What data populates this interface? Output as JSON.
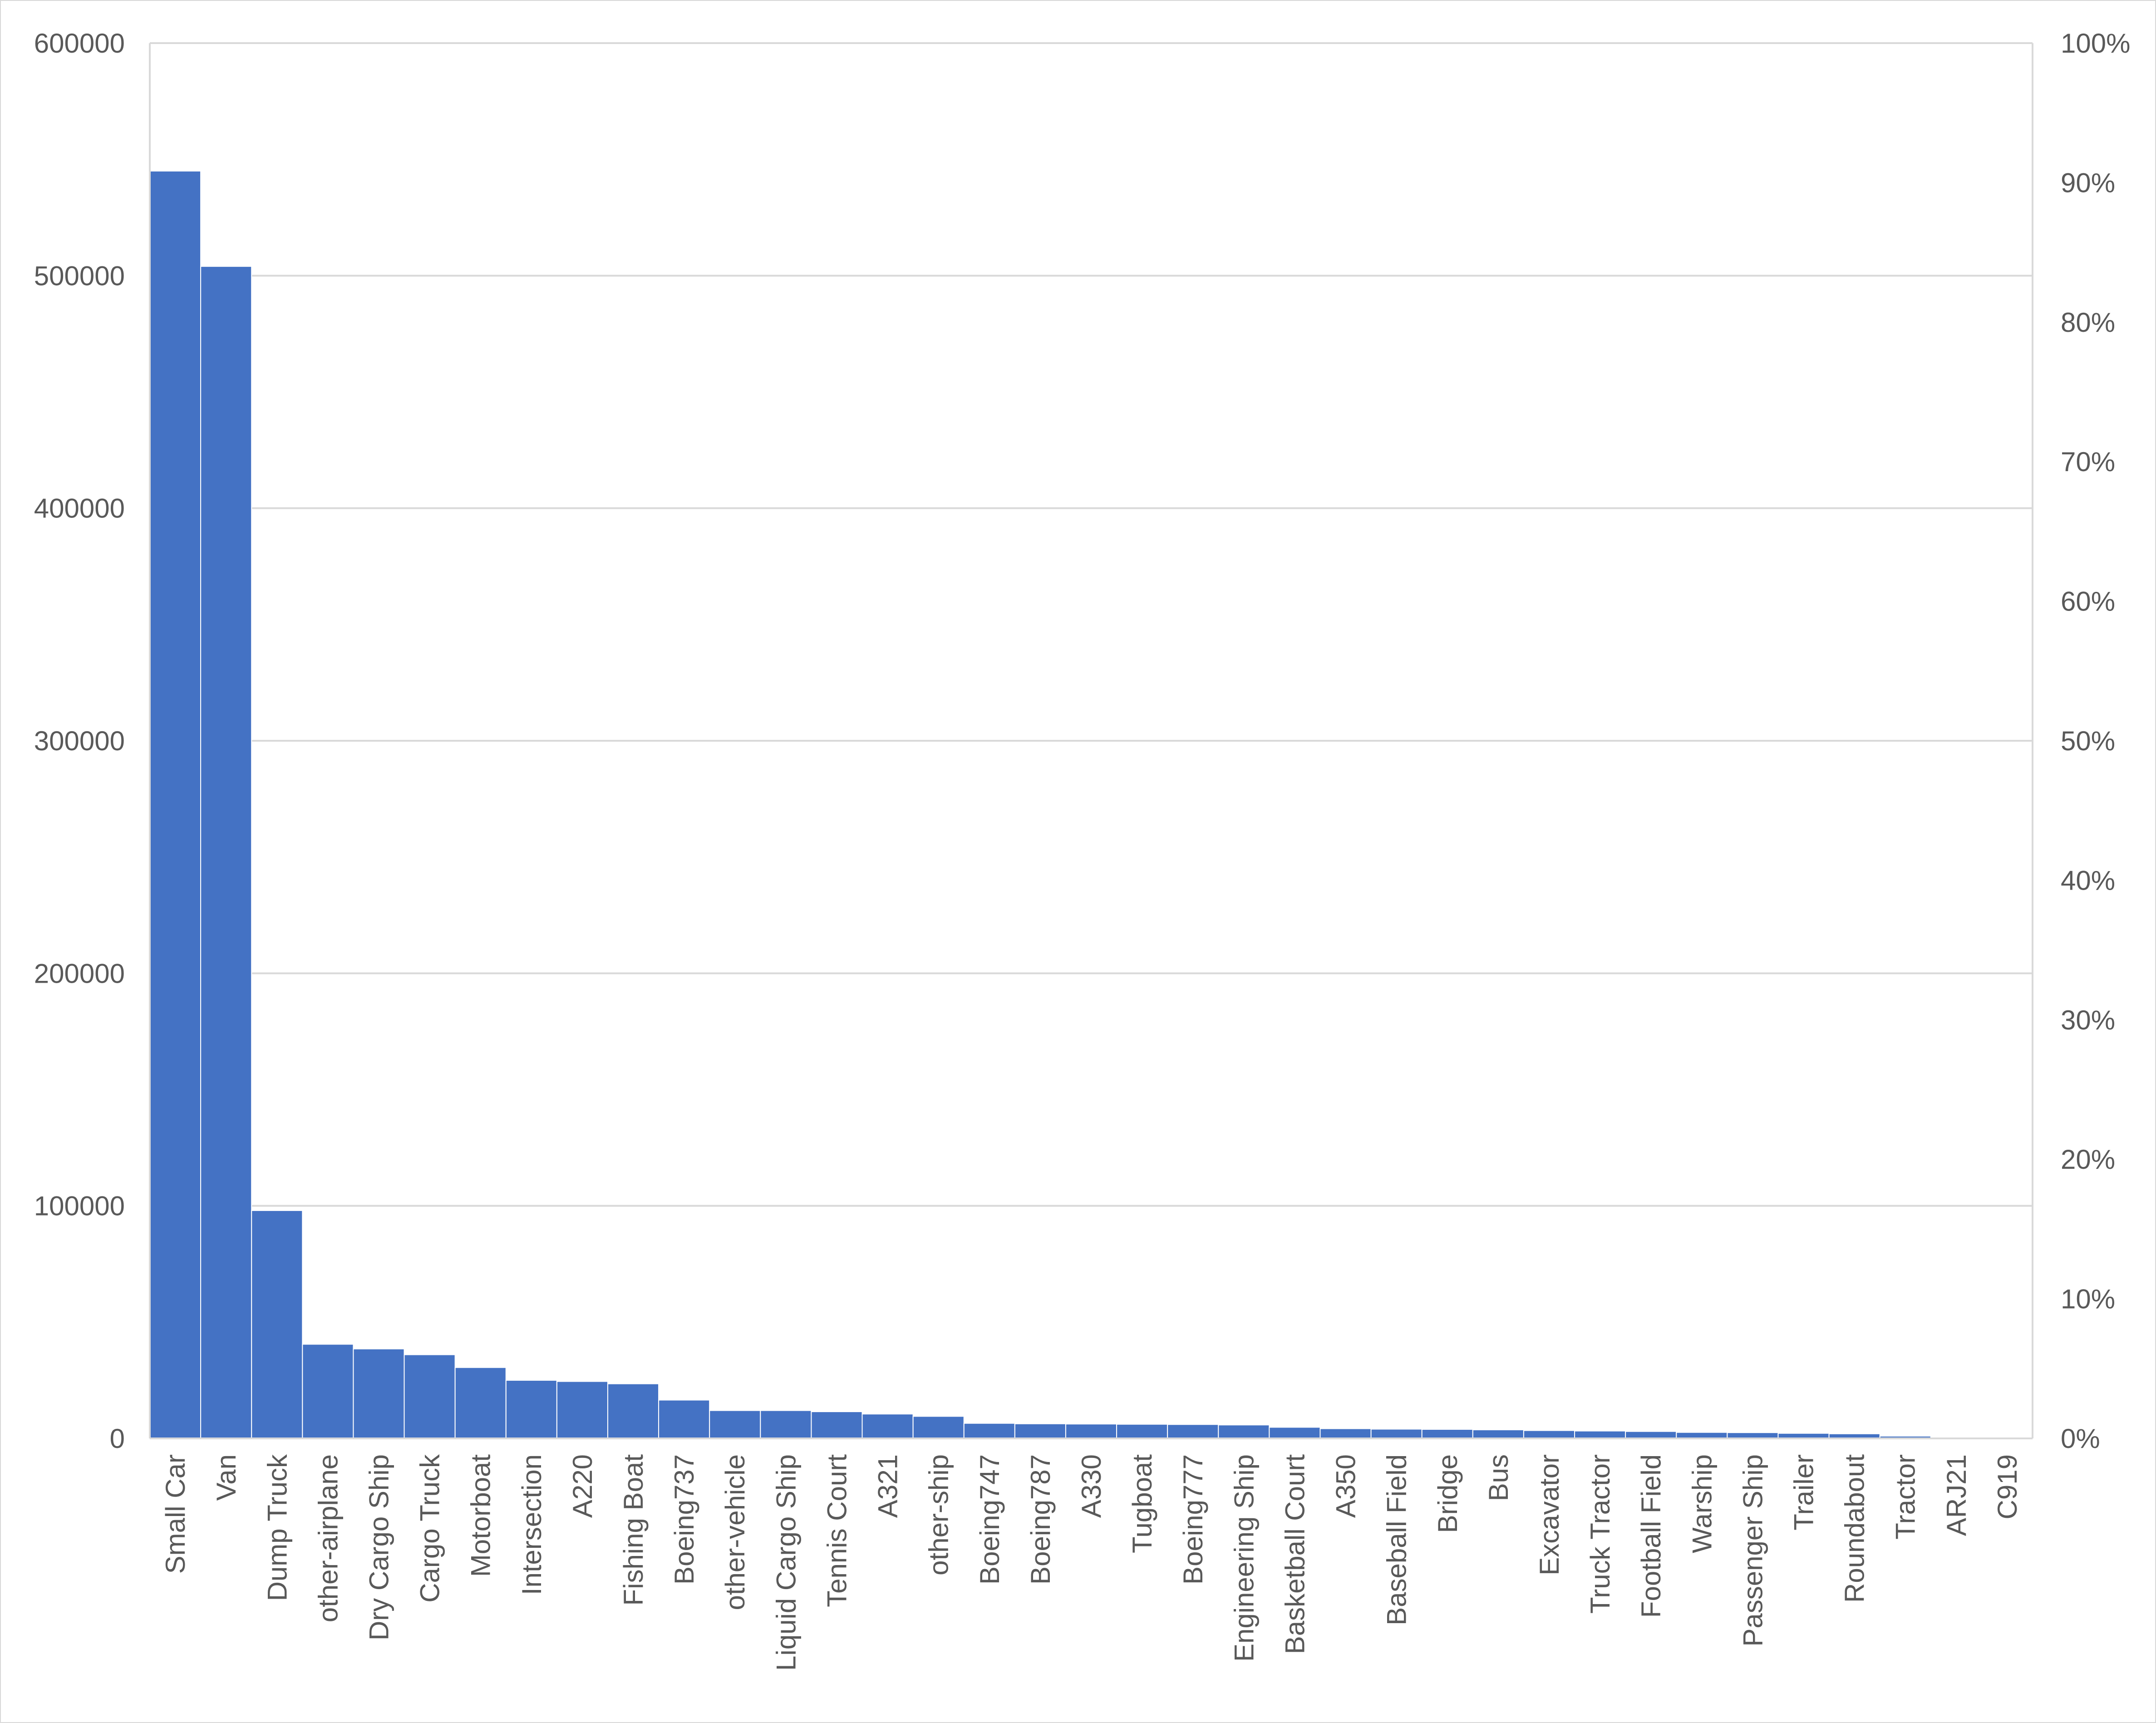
{
  "chart_data": {
    "type": "bar",
    "title": "",
    "xlabel": "",
    "ylabel": "",
    "y2label": "",
    "categories": [
      "Small Car",
      "Van",
      "Dump Truck",
      "other-airplane",
      "Dry Cargo Ship",
      "Cargo Truck",
      "Motorboat",
      "Intersection",
      "A220",
      "Fishing Boat",
      "Boeing737",
      "other-vehicle",
      "Liquid Cargo Ship",
      "Tennis Court",
      "A321",
      "other-ship",
      "Boeing747",
      "Boeing787",
      "A330",
      "Tugboat",
      "Boeing777",
      "Engineering Ship",
      "Basketball Court",
      "A350",
      "Baseball Field",
      "Bridge",
      "Bus",
      "Excavator",
      "Truck Tractor",
      "Football Field",
      "Warship",
      "Passenger Ship",
      "Trailer",
      "Roundabout",
      "Tractor",
      "ARJ21",
      "C919"
    ],
    "values": [
      545000,
      504000,
      98000,
      40500,
      38500,
      36000,
      30500,
      25000,
      24500,
      23500,
      16500,
      12000,
      12000,
      11500,
      10500,
      9500,
      6500,
      6300,
      6200,
      6100,
      6000,
      5800,
      4800,
      4200,
      4000,
      3900,
      3700,
      3400,
      3200,
      3000,
      2600,
      2500,
      2200,
      2000,
      1000,
      300,
      200
    ],
    "ylim": [
      0,
      600000
    ],
    "yticks": [
      "0",
      "100000",
      "200000",
      "300000",
      "400000",
      "500000",
      "600000"
    ],
    "y2lim": [
      0,
      100
    ],
    "y2ticks": [
      "0%",
      "10%",
      "20%",
      "30%",
      "40%",
      "50%",
      "60%",
      "70%",
      "80%",
      "90%",
      "100%"
    ],
    "bar_color": "#4472c4",
    "grid": true,
    "legend": "none"
  }
}
